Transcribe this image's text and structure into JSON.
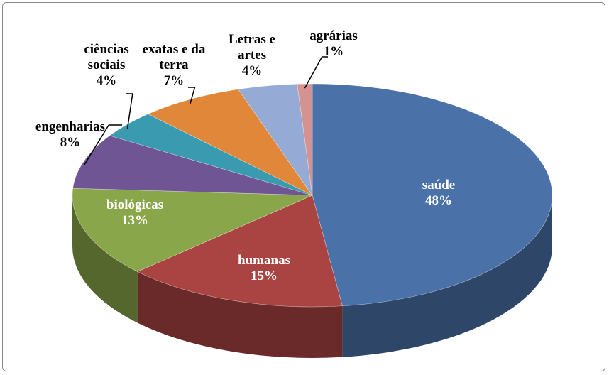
{
  "chart_data": {
    "type": "pie",
    "categories": [
      "saúde",
      "humanas",
      "biológicas",
      "engenharias",
      "ciências sociais",
      "exatas e da terra",
      "Letras e artes",
      "agrárias"
    ],
    "values": [
      48,
      15,
      13,
      8,
      4,
      7,
      4,
      1
    ],
    "value_labels": [
      "48%",
      "15%",
      "13%",
      "8%",
      "4%",
      "7%",
      "4%",
      "1%"
    ],
    "colors": [
      "#4a72a8",
      "#a94442",
      "#8aa64a",
      "#6f5594",
      "#3a9ab0",
      "#e0873a",
      "#95abd6",
      "#d49391"
    ]
  }
}
